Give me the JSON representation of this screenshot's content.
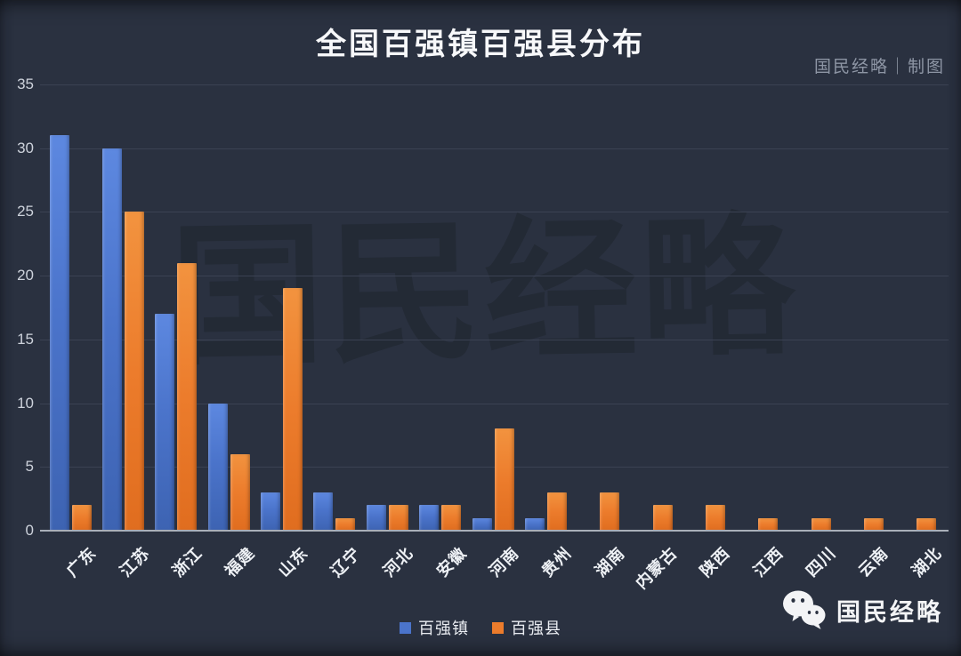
{
  "title": "全国百强镇百强县分布",
  "credit": "国民经略｜制图",
  "watermark": "国民经略",
  "footer": {
    "icon": "wechat-icon",
    "brand": "国民经略"
  },
  "legend": [
    {
      "label": "百强镇",
      "color": "#4b74cb"
    },
    {
      "label": "百强县",
      "color": "#ec7c2c"
    }
  ],
  "colors": {
    "background": "#2a3140",
    "gridline": "#3b4252",
    "baseline": "#a9afb9",
    "title_text": "#f7f8fa",
    "axis_text": "#cdd2db",
    "series_blue": "#4b74cb",
    "series_orange": "#ec7c2c"
  },
  "chart_data": {
    "type": "bar",
    "title": "全国百强镇百强县分布",
    "categories": [
      "广东",
      "江苏",
      "浙江",
      "福建",
      "山东",
      "辽宁",
      "河北",
      "安徽",
      "河南",
      "贵州",
      "湖南",
      "内蒙古",
      "陕西",
      "江西",
      "四川",
      "云南",
      "湖北"
    ],
    "series": [
      {
        "name": "百强镇",
        "color": "#4b74cb",
        "values": [
          31,
          30,
          17,
          10,
          3,
          3,
          2,
          2,
          1,
          1,
          0,
          0,
          0,
          0,
          0,
          0,
          0
        ]
      },
      {
        "name": "百强县",
        "color": "#ec7c2c",
        "values": [
          2,
          25,
          21,
          6,
          19,
          1,
          2,
          2,
          8,
          3,
          3,
          2,
          2,
          1,
          1,
          1,
          1
        ]
      }
    ],
    "xlabel": "",
    "ylabel": "",
    "ylim": [
      0,
      35
    ],
    "yticks": [
      0,
      5,
      10,
      15,
      20,
      25,
      30,
      35
    ],
    "grid": true,
    "legend_position": "bottom"
  }
}
